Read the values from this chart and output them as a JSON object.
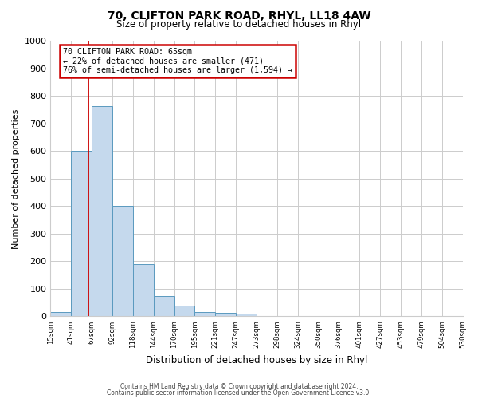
{
  "title": "70, CLIFTON PARK ROAD, RHYL, LL18 4AW",
  "subtitle": "Size of property relative to detached houses in Rhyl",
  "bar_values": [
    15,
    600,
    765,
    400,
    190,
    75,
    40,
    15,
    12,
    10,
    0,
    0,
    0,
    0,
    0,
    0,
    0,
    0,
    0,
    0
  ],
  "bar_labels": [
    "15sqm",
    "41sqm",
    "67sqm",
    "92sqm",
    "118sqm",
    "144sqm",
    "170sqm",
    "195sqm",
    "221sqm",
    "247sqm",
    "273sqm",
    "298sqm",
    "324sqm",
    "350sqm",
    "376sqm",
    "401sqm",
    "427sqm",
    "453sqm",
    "479sqm",
    "504sqm",
    "530sqm"
  ],
  "xlabel": "Distribution of detached houses by size in Rhyl",
  "ylabel": "Number of detached properties",
  "ylim": [
    0,
    1000
  ],
  "yticks": [
    0,
    100,
    200,
    300,
    400,
    500,
    600,
    700,
    800,
    900,
    1000
  ],
  "bar_color": "#c5d9ed",
  "bar_edge_color": "#5a9abf",
  "vline_color": "#cc0000",
  "vline_x": 1.85,
  "annotation_title": "70 CLIFTON PARK ROAD: 65sqm",
  "annotation_line1": "← 22% of detached houses are smaller (471)",
  "annotation_line2": "76% of semi-detached houses are larger (1,594) →",
  "annotation_box_color": "#cc0000",
  "footer1": "Contains HM Land Registry data © Crown copyright and database right 2024.",
  "footer2": "Contains public sector information licensed under the Open Government Licence v3.0.",
  "background_color": "#ffffff",
  "grid_color": "#cccccc"
}
